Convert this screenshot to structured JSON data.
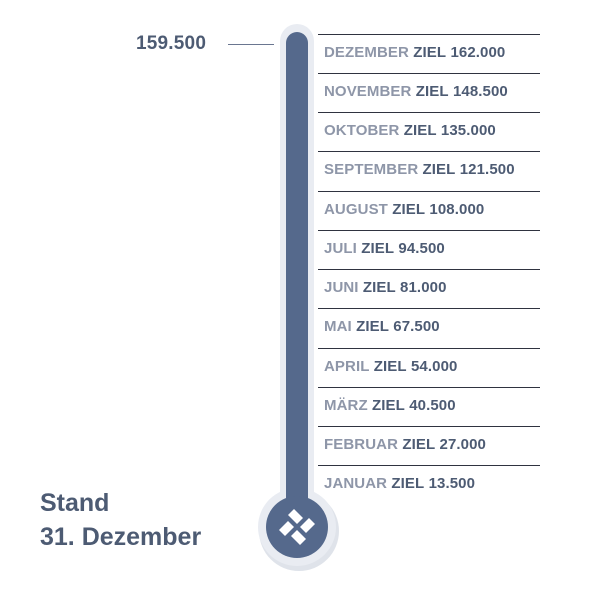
{
  "current_value": "159.500",
  "status": {
    "line1": "Stand",
    "line2": "31. Dezember"
  },
  "colors": {
    "fill": "#55698c",
    "tube": "#e9ecf2",
    "text_dark": "#4d5b73",
    "text_light": "#8e96a8"
  },
  "icon": "four-diamond-logo-icon",
  "scale": [
    {
      "month": "DEZEMBER",
      "target_label": "ZIEL",
      "target_value": "162.000"
    },
    {
      "month": "NOVEMBER",
      "target_label": "ZIEL",
      "target_value": "148.500"
    },
    {
      "month": "OKTOBER",
      "target_label": "ZIEL",
      "target_value": "135.000"
    },
    {
      "month": "SEPTEMBER",
      "target_label": "ZIEL",
      "target_value": "121.500"
    },
    {
      "month": "AUGUST",
      "target_label": "ZIEL",
      "target_value": "108.000"
    },
    {
      "month": "JULI",
      "target_label": "ZIEL",
      "target_value": "94.500"
    },
    {
      "month": "JUNI",
      "target_label": "ZIEL",
      "target_value": "81.000"
    },
    {
      "month": "MAI",
      "target_label": "ZIEL",
      "target_value": "67.500"
    },
    {
      "month": "APRIL",
      "target_label": "ZIEL",
      "target_value": "54.000"
    },
    {
      "month": "MÄRZ",
      "target_label": "ZIEL",
      "target_value": "40.500"
    },
    {
      "month": "FEBRUAR",
      "target_label": "ZIEL",
      "target_value": "27.000"
    },
    {
      "month": "JANUAR",
      "target_label": "ZIEL",
      "target_value": "13.500"
    }
  ]
}
